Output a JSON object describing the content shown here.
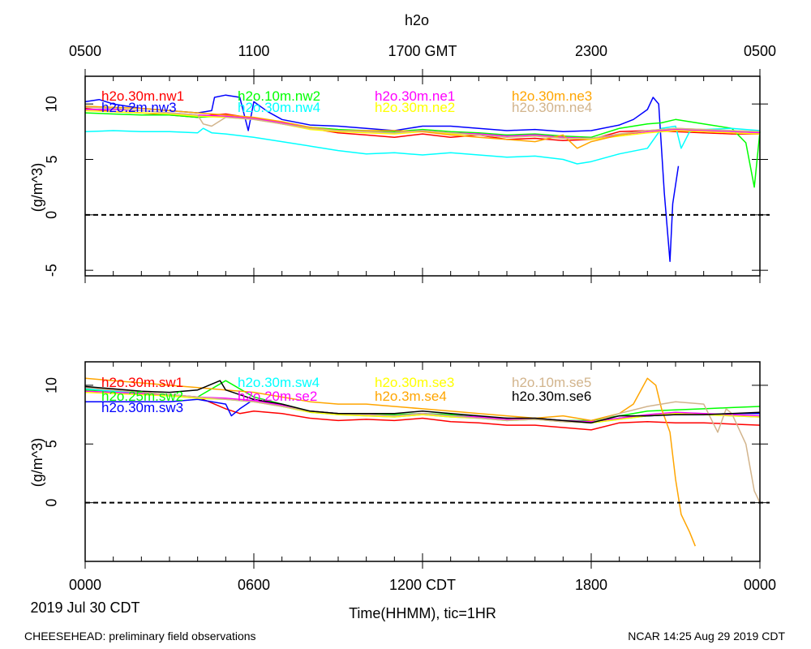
{
  "title": "h2o",
  "top_axis": {
    "tick_labels": [
      "0500",
      "1100",
      "1700 GMT",
      "2300",
      "0500"
    ]
  },
  "bottom_axis": {
    "tick_labels": [
      "0000",
      "0600",
      "1200 CDT",
      "1800",
      "0000"
    ],
    "date_label": "2019 Jul 30 CDT",
    "xlabel": "Time(HHMM), tic=1HR"
  },
  "footer": {
    "left": "CHEESEHEAD: preliminary field observations",
    "right": "NCAR 14:25 Aug 29 2019 CDT"
  },
  "chart_data": [
    {
      "type": "line",
      "panel": "top",
      "ylabel": "(g/m^3)",
      "ylim": [
        -5.5,
        12.5
      ],
      "xlim": [
        0,
        24
      ],
      "x_units": "hours CDT",
      "yticks": [
        -5,
        0,
        5,
        10
      ],
      "ytick_labels": [
        "-5",
        "0",
        "5",
        "10"
      ],
      "zero_line": 0,
      "series": [
        {
          "name": "h2o.30m.nw1",
          "color": "#ff0000",
          "x": [
            0,
            1,
            2,
            3,
            4,
            4.5,
            5,
            6,
            7,
            8,
            9,
            10,
            11,
            12,
            13,
            14,
            15,
            16,
            17,
            18,
            19,
            20,
            21,
            22,
            23,
            24
          ],
          "y": [
            9.6,
            9.3,
            9.2,
            9.0,
            8.8,
            9.0,
            9.1,
            8.7,
            8.2,
            7.8,
            7.4,
            7.2,
            7.0,
            7.3,
            7.0,
            7.2,
            6.8,
            6.9,
            6.7,
            6.8,
            7.5,
            7.6,
            7.5,
            7.4,
            7.3,
            7.3
          ]
        },
        {
          "name": "h2o.2m.nw3",
          "color": "#0000ff",
          "x": [
            0,
            0.5,
            1,
            2,
            3,
            4,
            4.5,
            4.6,
            5,
            5.5,
            5.8,
            6,
            6.5,
            7,
            8,
            9,
            10,
            11,
            12,
            13,
            14,
            15,
            16,
            17,
            18,
            19,
            19.5,
            20,
            20.2,
            20.4,
            20.6,
            20.8,
            20.9,
            21.1
          ],
          "y": [
            10.2,
            10.4,
            10.0,
            9.6,
            9.4,
            9.2,
            9.4,
            10.6,
            10.8,
            10.6,
            7.6,
            10.2,
            9.3,
            8.6,
            8.1,
            8.0,
            7.8,
            7.6,
            8.0,
            8.0,
            7.8,
            7.6,
            7.7,
            7.5,
            7.6,
            8.1,
            8.6,
            9.5,
            10.6,
            10.0,
            2.0,
            -4.2,
            1.0,
            4.4
          ]
        },
        {
          "name": "h2o.10m.nw2",
          "color": "#00ff00",
          "x": [
            0,
            1,
            2,
            3,
            4,
            5,
            6,
            7,
            8,
            9,
            10,
            11,
            12,
            13,
            14,
            15,
            16,
            17,
            18,
            19,
            20,
            20.5,
            21,
            22,
            23,
            23.5,
            23.8,
            24
          ],
          "y": [
            9.2,
            9.1,
            9.0,
            9.0,
            8.8,
            8.9,
            8.7,
            8.3,
            7.9,
            7.7,
            7.6,
            7.5,
            7.7,
            7.5,
            7.4,
            7.2,
            7.3,
            7.1,
            7.0,
            7.8,
            8.2,
            8.3,
            8.6,
            8.2,
            7.8,
            6.5,
            2.5,
            7.5
          ]
        },
        {
          "name": "h2o.30m.nw4",
          "color": "#00ffff",
          "x": [
            0,
            1,
            2,
            3,
            4,
            4.2,
            4.5,
            5,
            6,
            7,
            8,
            9,
            10,
            11,
            12,
            13,
            14,
            15,
            16,
            17,
            17.5,
            18,
            19,
            20,
            20.5,
            21,
            21.2,
            21.5,
            22,
            23,
            24
          ],
          "y": [
            7.5,
            7.6,
            7.5,
            7.5,
            7.4,
            7.8,
            7.4,
            7.3,
            7.0,
            6.6,
            6.2,
            5.8,
            5.5,
            5.6,
            5.4,
            5.6,
            5.4,
            5.2,
            5.3,
            5.0,
            4.6,
            4.8,
            5.5,
            6.0,
            7.8,
            8.0,
            6.0,
            7.5,
            7.7,
            7.8,
            7.6
          ]
        },
        {
          "name": "h2o.30m.ne1",
          "color": "#ff00ff",
          "x": [
            0,
            1,
            2,
            3,
            4,
            5,
            6,
            7,
            8,
            9,
            10,
            11,
            12,
            13,
            14,
            15,
            16,
            17,
            18,
            19,
            20,
            21,
            22,
            23,
            24
          ],
          "y": [
            9.5,
            9.5,
            9.4,
            9.2,
            9.0,
            8.9,
            8.7,
            8.3,
            7.8,
            7.6,
            7.5,
            7.4,
            7.6,
            7.4,
            7.3,
            7.1,
            7.2,
            7.0,
            6.9,
            7.2,
            7.5,
            7.7,
            7.6,
            7.5,
            7.4
          ]
        },
        {
          "name": "h2o.30m.ne2",
          "color": "#ffff00",
          "x": [
            0,
            1,
            2,
            3,
            4,
            5,
            6,
            7,
            8,
            9,
            10,
            11,
            12,
            13,
            14,
            15,
            16,
            17,
            18,
            19,
            20,
            21,
            22,
            23,
            24
          ],
          "y": [
            9.4,
            9.3,
            9.2,
            9.1,
            8.9,
            8.8,
            8.6,
            8.2,
            7.7,
            7.5,
            7.4,
            7.3,
            7.5,
            7.3,
            7.2,
            7.0,
            7.1,
            6.9,
            6.8,
            7.1,
            7.4,
            7.6,
            7.5,
            7.4,
            7.3
          ]
        },
        {
          "name": "h2o.30m.ne3",
          "color": "#ffa500",
          "x": [
            0,
            1,
            2,
            3,
            4,
            5,
            6,
            7,
            8,
            9,
            10,
            11,
            12,
            13,
            14,
            15,
            16,
            17,
            17.5,
            18,
            19,
            20,
            21,
            22,
            23,
            24
          ],
          "y": [
            9.8,
            9.7,
            9.6,
            9.4,
            9.2,
            9.0,
            8.8,
            8.4,
            7.9,
            7.6,
            7.6,
            7.6,
            7.5,
            7.2,
            7.0,
            6.8,
            6.6,
            7.2,
            6.0,
            6.6,
            7.2,
            7.6,
            7.8,
            7.7,
            7.6,
            7.5
          ]
        },
        {
          "name": "h2o.30m.ne4",
          "color": "#d2b48c",
          "x": [
            0,
            1,
            2,
            3,
            4,
            4.2,
            4.5,
            5,
            6,
            7,
            8,
            9,
            10,
            11,
            12,
            13,
            14,
            15,
            16,
            17,
            18,
            19,
            20,
            21,
            22,
            23,
            24
          ],
          "y": [
            9.7,
            9.6,
            9.4,
            9.2,
            9.0,
            8.2,
            8.0,
            8.8,
            8.6,
            8.2,
            7.8,
            7.6,
            7.5,
            7.4,
            7.6,
            7.4,
            7.2,
            7.0,
            7.1,
            6.9,
            6.9,
            7.3,
            7.6,
            7.8,
            7.7,
            7.6,
            7.5
          ]
        }
      ]
    },
    {
      "type": "line",
      "panel": "bottom",
      "ylabel": "(g/m^3)",
      "ylim": [
        -5,
        12
      ],
      "xlim": [
        0,
        24
      ],
      "x_units": "hours CDT",
      "yticks": [
        0,
        5,
        10
      ],
      "ytick_labels": [
        "0",
        "5",
        "10"
      ],
      "zero_line": 0,
      "series": [
        {
          "name": "h2o.30m.sw1",
          "color": "#ff0000",
          "x": [
            0,
            1,
            2,
            3,
            4,
            5,
            5.5,
            6,
            7,
            8,
            9,
            10,
            11,
            12,
            13,
            14,
            15,
            16,
            17,
            18,
            19,
            20,
            21,
            22,
            23,
            24
          ],
          "y": [
            9.8,
            9.6,
            9.4,
            9.2,
            9.0,
            8.0,
            7.6,
            7.8,
            7.6,
            7.2,
            7.0,
            7.1,
            7.0,
            7.2,
            6.9,
            6.8,
            6.6,
            6.6,
            6.4,
            6.2,
            6.8,
            6.9,
            6.8,
            6.8,
            6.7,
            6.6
          ]
        },
        {
          "name": "h2o.25m.sw2",
          "color": "#00ff00",
          "x": [
            0,
            1,
            2,
            3,
            4,
            5,
            6,
            7,
            8,
            9,
            10,
            11,
            12,
            13,
            14,
            15,
            16,
            17,
            18,
            19,
            20,
            21,
            22,
            23,
            24
          ],
          "y": [
            9.6,
            9.5,
            9.3,
            9.1,
            9.0,
            10.4,
            9.0,
            8.4,
            7.8,
            7.6,
            7.5,
            7.5,
            7.6,
            7.5,
            7.3,
            7.1,
            7.2,
            7.0,
            7.0,
            7.4,
            7.8,
            7.9,
            8.0,
            8.1,
            8.2
          ]
        },
        {
          "name": "h2o.30m.sw3",
          "color": "#0000ff",
          "x": [
            0,
            1,
            2,
            3,
            4,
            5,
            5.2,
            5.5,
            6,
            7,
            8,
            9,
            10,
            11,
            12,
            13,
            14,
            15,
            16,
            17,
            18,
            19,
            20,
            21,
            22,
            23,
            24
          ],
          "y": [
            8.6,
            8.6,
            8.6,
            8.6,
            8.8,
            8.4,
            7.4,
            8.0,
            8.8,
            8.2,
            7.8,
            7.6,
            7.5,
            7.4,
            7.6,
            7.4,
            7.3,
            7.2,
            7.1,
            7.0,
            6.8,
            7.2,
            7.4,
            7.5,
            7.5,
            7.6,
            7.6
          ]
        },
        {
          "name": "h2o.30m.sw4",
          "color": "#00ffff",
          "x": [
            0,
            1,
            2,
            3,
            4,
            5,
            6,
            7,
            8,
            9,
            10,
            11,
            12,
            13,
            14,
            15,
            16,
            17,
            18,
            19,
            20,
            21,
            22,
            23,
            24
          ],
          "y": [
            9.7,
            9.5,
            9.3,
            9.1,
            8.9,
            8.8,
            8.6,
            8.2,
            7.7,
            7.5,
            7.4,
            7.3,
            7.5,
            7.3,
            7.2,
            7.0,
            7.1,
            6.9,
            6.8,
            7.1,
            7.4,
            7.6,
            7.5,
            7.4,
            7.3
          ]
        },
        {
          "name": "h2o.20m.se2",
          "color": "#ff00ff",
          "x": [
            0,
            1,
            2,
            3,
            4,
            5,
            6,
            7,
            8,
            9,
            10,
            11,
            12,
            13,
            14,
            15,
            16,
            17,
            18,
            19,
            20,
            21,
            22,
            23,
            24
          ],
          "y": [
            9.5,
            9.4,
            9.3,
            9.2,
            9.0,
            8.9,
            8.7,
            8.3,
            7.8,
            7.6,
            7.5,
            7.4,
            7.6,
            7.4,
            7.3,
            7.1,
            7.2,
            7.0,
            6.9,
            7.2,
            7.5,
            7.7,
            7.6,
            7.5,
            7.4
          ]
        },
        {
          "name": "h2o.30m.se3",
          "color": "#ffff00",
          "x": [
            0,
            1,
            2,
            3,
            4,
            5,
            6,
            7,
            8,
            9,
            10,
            11,
            12,
            13,
            14,
            15,
            16,
            17,
            18,
            19,
            20,
            21,
            22,
            23,
            24
          ],
          "y": [
            9.4,
            9.3,
            9.2,
            9.1,
            8.9,
            8.8,
            8.6,
            8.2,
            7.7,
            7.5,
            7.4,
            7.3,
            7.5,
            7.3,
            7.2,
            7.0,
            7.1,
            6.9,
            6.8,
            7.1,
            7.4,
            7.6,
            7.5,
            7.4,
            7.3
          ]
        },
        {
          "name": "h2o.3m.se4",
          "color": "#ffa500",
          "x": [
            0,
            1,
            2,
            3,
            4,
            5,
            6,
            7,
            8,
            9,
            10,
            11,
            12,
            13,
            14,
            15,
            16,
            17,
            18,
            19,
            19.5,
            20,
            20.3,
            20.5,
            20.8,
            21.0,
            21.2,
            21.5,
            21.7
          ],
          "y": [
            10.6,
            10.4,
            10.2,
            10.0,
            9.8,
            9.6,
            9.4,
            9.0,
            8.6,
            8.4,
            8.4,
            8.2,
            8.0,
            7.8,
            7.6,
            7.4,
            7.2,
            7.4,
            7.0,
            7.6,
            8.4,
            10.6,
            10.0,
            8.0,
            6.0,
            2.0,
            -1.0,
            -2.5,
            -3.7
          ]
        },
        {
          "name": "h2o.10m.se5",
          "color": "#d2b48c",
          "x": [
            0,
            1,
            2,
            3,
            4,
            5,
            6,
            7,
            8,
            9,
            10,
            11,
            12,
            13,
            14,
            15,
            16,
            17,
            18,
            19,
            20,
            21,
            22,
            22.5,
            22.8,
            23,
            23.5,
            23.8,
            24
          ],
          "y": [
            9.8,
            9.6,
            9.4,
            9.2,
            9.0,
            8.8,
            8.6,
            8.2,
            7.8,
            7.6,
            7.5,
            7.4,
            7.6,
            7.4,
            7.2,
            7.0,
            7.1,
            6.9,
            6.8,
            7.6,
            8.2,
            8.6,
            8.4,
            6.0,
            8.0,
            7.6,
            5.0,
            1.0,
            0.0
          ]
        },
        {
          "name": "h2o.30m.se6",
          "color": "#000000",
          "x": [
            0,
            1,
            2,
            3,
            4,
            4.8,
            5,
            6,
            7,
            8,
            9,
            10,
            11,
            12,
            13,
            14,
            15,
            16,
            17,
            18,
            19,
            20,
            21,
            22,
            23,
            24
          ],
          "y": [
            9.9,
            9.7,
            9.5,
            9.4,
            9.6,
            10.4,
            9.6,
            8.8,
            8.4,
            7.8,
            7.6,
            7.6,
            7.6,
            7.8,
            7.6,
            7.4,
            7.2,
            7.2,
            7.0,
            6.8,
            7.4,
            7.4,
            7.5,
            7.5,
            7.6,
            7.7
          ]
        }
      ]
    }
  ]
}
